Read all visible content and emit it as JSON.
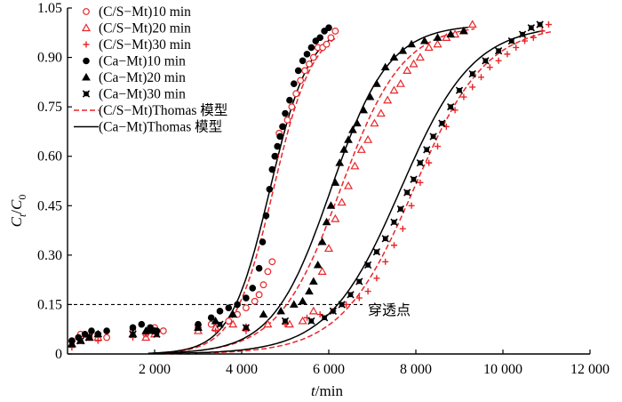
{
  "chart_data": {
    "type": "scatter",
    "title": "",
    "xlabel": {
      "var": "t",
      "unit": "/min"
    },
    "ylabel": {
      "main": "C",
      "sub_t": "t",
      "slash": "/",
      "main2": "C",
      "sub_0": "0"
    },
    "xlim": [
      0,
      12000
    ],
    "ylim": [
      0,
      1.05
    ],
    "x_ticks": [
      2000,
      4000,
      6000,
      8000,
      10000,
      12000
    ],
    "x_tick_labels": [
      "2 000",
      "4 000",
      "6 000",
      "8 000",
      "10 000",
      "12 000"
    ],
    "y_ticks": [
      0,
      0.15,
      0.3,
      0.45,
      0.6,
      0.75,
      0.9,
      1.05
    ],
    "y_tick_labels": [
      "0",
      "0.15",
      "0.30",
      "0.45",
      "0.60",
      "0.75",
      "0.90",
      "1.05"
    ],
    "grid": false,
    "legend_position": "top-left",
    "breakthrough": {
      "y": 0.15,
      "label": "穿透点"
    },
    "series": [
      {
        "name": "(C/S−Mt)10 min",
        "marker": "circle-open",
        "color": "#e8262a",
        "points": [
          [
            100,
            0.04
          ],
          [
            300,
            0.06
          ],
          [
            500,
            0.05
          ],
          [
            700,
            0.06
          ],
          [
            900,
            0.05
          ],
          [
            1500,
            0.07
          ],
          [
            1800,
            0.06
          ],
          [
            2000,
            0.08
          ],
          [
            2200,
            0.07
          ],
          [
            3000,
            0.08
          ],
          [
            3300,
            0.09
          ],
          [
            3700,
            0.1
          ],
          [
            3900,
            0.12
          ],
          [
            4100,
            0.14
          ],
          [
            4300,
            0.16
          ],
          [
            4400,
            0.18
          ],
          [
            4500,
            0.21
          ],
          [
            4600,
            0.25
          ],
          [
            4700,
            0.28
          ],
          [
            4780,
            0.6
          ],
          [
            4860,
            0.67
          ],
          [
            4940,
            0.69
          ],
          [
            5050,
            0.71
          ],
          [
            5150,
            0.75
          ],
          [
            5250,
            0.79
          ],
          [
            5350,
            0.83
          ],
          [
            5450,
            0.86
          ],
          [
            5550,
            0.88
          ],
          [
            5650,
            0.9
          ],
          [
            5750,
            0.93
          ],
          [
            5860,
            0.93
          ],
          [
            5950,
            0.94
          ],
          [
            6050,
            0.96
          ],
          [
            6150,
            0.98
          ]
        ]
      },
      {
        "name": "(C/S−Mt)20 min",
        "marker": "triangle-open",
        "color": "#e8262a",
        "points": [
          [
            100,
            0.03
          ],
          [
            300,
            0.04
          ],
          [
            500,
            0.05
          ],
          [
            700,
            0.05
          ],
          [
            1500,
            0.06
          ],
          [
            1800,
            0.05
          ],
          [
            2000,
            0.06
          ],
          [
            3000,
            0.07
          ],
          [
            3400,
            0.08
          ],
          [
            3800,
            0.09
          ],
          [
            4100,
            0.08
          ],
          [
            4600,
            0.09
          ],
          [
            5100,
            0.09
          ],
          [
            5400,
            0.1
          ],
          [
            5650,
            0.13
          ],
          [
            5850,
            0.25
          ],
          [
            6000,
            0.32
          ],
          [
            6150,
            0.41
          ],
          [
            6300,
            0.46
          ],
          [
            6450,
            0.51
          ],
          [
            6600,
            0.57
          ],
          [
            6750,
            0.62
          ],
          [
            6900,
            0.65
          ],
          [
            7050,
            0.7
          ],
          [
            7200,
            0.73
          ],
          [
            7350,
            0.77
          ],
          [
            7500,
            0.8
          ],
          [
            7650,
            0.82
          ],
          [
            7800,
            0.86
          ],
          [
            7950,
            0.88
          ],
          [
            8100,
            0.9
          ],
          [
            8300,
            0.93
          ],
          [
            8500,
            0.94
          ],
          [
            8700,
            0.96
          ],
          [
            8900,
            0.97
          ],
          [
            9100,
            0.98
          ],
          [
            9300,
            1.0
          ]
        ]
      },
      {
        "name": "(C/S−Mt)30 min",
        "marker": "plus",
        "color": "#e8262a",
        "points": [
          [
            100,
            0.02
          ],
          [
            300,
            0.04
          ],
          [
            500,
            0.05
          ],
          [
            700,
            0.04
          ],
          [
            1500,
            0.05
          ],
          [
            1800,
            0.06
          ],
          [
            2000,
            0.07
          ],
          [
            3000,
            0.08
          ],
          [
            3400,
            0.07
          ],
          [
            4100,
            0.07
          ],
          [
            5000,
            0.09
          ],
          [
            5500,
            0.11
          ],
          [
            5800,
            0.12
          ],
          [
            6100,
            0.13
          ],
          [
            6400,
            0.15
          ],
          [
            6700,
            0.17
          ],
          [
            6900,
            0.19
          ],
          [
            7100,
            0.23
          ],
          [
            7300,
            0.28
          ],
          [
            7500,
            0.33
          ],
          [
            7700,
            0.38
          ],
          [
            7900,
            0.45
          ],
          [
            8100,
            0.52
          ],
          [
            8300,
            0.58
          ],
          [
            8500,
            0.63
          ],
          [
            8700,
            0.69
          ],
          [
            8900,
            0.74
          ],
          [
            9100,
            0.78
          ],
          [
            9300,
            0.81
          ],
          [
            9500,
            0.84
          ],
          [
            9700,
            0.87
          ],
          [
            9900,
            0.89
          ],
          [
            10100,
            0.91
          ],
          [
            10300,
            0.93
          ],
          [
            10500,
            0.95
          ],
          [
            10700,
            0.96
          ],
          [
            10900,
            0.98
          ],
          [
            11050,
            1.0
          ]
        ]
      },
      {
        "name": "(Ca−Mt)10 min",
        "marker": "circle-filled",
        "color": "#000000",
        "points": [
          [
            100,
            0.04
          ],
          [
            250,
            0.05
          ],
          [
            400,
            0.06
          ],
          [
            550,
            0.07
          ],
          [
            700,
            0.06
          ],
          [
            900,
            0.07
          ],
          [
            1500,
            0.08
          ],
          [
            1700,
            0.09
          ],
          [
            1900,
            0.08
          ],
          [
            2050,
            0.07
          ],
          [
            3000,
            0.09
          ],
          [
            3300,
            0.11
          ],
          [
            3500,
            0.13
          ],
          [
            3700,
            0.14
          ],
          [
            3900,
            0.15
          ],
          [
            4100,
            0.17
          ],
          [
            4250,
            0.2
          ],
          [
            4400,
            0.26
          ],
          [
            4480,
            0.34
          ],
          [
            4560,
            0.42
          ],
          [
            4640,
            0.5
          ],
          [
            4700,
            0.56
          ],
          [
            4760,
            0.6
          ],
          [
            4820,
            0.63
          ],
          [
            4880,
            0.66
          ],
          [
            4940,
            0.69
          ],
          [
            5000,
            0.73
          ],
          [
            5100,
            0.77
          ],
          [
            5200,
            0.82
          ],
          [
            5300,
            0.86
          ],
          [
            5400,
            0.89
          ],
          [
            5500,
            0.91
          ],
          [
            5600,
            0.93
          ],
          [
            5700,
            0.95
          ],
          [
            5800,
            0.96
          ],
          [
            5900,
            0.98
          ],
          [
            6000,
            0.99
          ]
        ]
      },
      {
        "name": "(Ca−Mt)20 min",
        "marker": "triangle-filled",
        "color": "#000000",
        "points": [
          [
            100,
            0.03
          ],
          [
            300,
            0.04
          ],
          [
            500,
            0.05
          ],
          [
            700,
            0.06
          ],
          [
            1500,
            0.06
          ],
          [
            1800,
            0.07
          ],
          [
            2000,
            0.07
          ],
          [
            3000,
            0.08
          ],
          [
            3400,
            0.1
          ],
          [
            3800,
            0.12
          ],
          [
            4500,
            0.12
          ],
          [
            4900,
            0.13
          ],
          [
            5200,
            0.15
          ],
          [
            5400,
            0.16
          ],
          [
            5550,
            0.19
          ],
          [
            5650,
            0.22
          ],
          [
            5750,
            0.27
          ],
          [
            5850,
            0.34
          ],
          [
            5950,
            0.4
          ],
          [
            6050,
            0.45
          ],
          [
            6150,
            0.52
          ],
          [
            6250,
            0.58
          ],
          [
            6350,
            0.62
          ],
          [
            6450,
            0.65
          ],
          [
            6550,
            0.68
          ],
          [
            6650,
            0.7
          ],
          [
            6800,
            0.74
          ],
          [
            6950,
            0.78
          ],
          [
            7100,
            0.82
          ],
          [
            7300,
            0.87
          ],
          [
            7500,
            0.9
          ],
          [
            7700,
            0.92
          ],
          [
            7900,
            0.94
          ],
          [
            8200,
            0.95
          ],
          [
            8500,
            0.96
          ],
          [
            8800,
            0.97
          ],
          [
            9100,
            0.98
          ]
        ]
      },
      {
        "name": "(Ca−Mt)30 min",
        "marker": "x-square",
        "color": "#000000",
        "points": [
          [
            100,
            0.03
          ],
          [
            300,
            0.04
          ],
          [
            500,
            0.05
          ],
          [
            1500,
            0.06
          ],
          [
            1900,
            0.07
          ],
          [
            2050,
            0.06
          ],
          [
            3000,
            0.08
          ],
          [
            3500,
            0.09
          ],
          [
            4100,
            0.08
          ],
          [
            5000,
            0.1
          ],
          [
            5600,
            0.1
          ],
          [
            5900,
            0.11
          ],
          [
            6100,
            0.13
          ],
          [
            6300,
            0.15
          ],
          [
            6500,
            0.18
          ],
          [
            6700,
            0.22
          ],
          [
            6900,
            0.27
          ],
          [
            7100,
            0.31
          ],
          [
            7300,
            0.35
          ],
          [
            7500,
            0.4
          ],
          [
            7650,
            0.44
          ],
          [
            7800,
            0.49
          ],
          [
            7950,
            0.53
          ],
          [
            8100,
            0.58
          ],
          [
            8250,
            0.62
          ],
          [
            8400,
            0.66
          ],
          [
            8600,
            0.7
          ],
          [
            8800,
            0.75
          ],
          [
            9000,
            0.8
          ],
          [
            9300,
            0.85
          ],
          [
            9600,
            0.89
          ],
          [
            9900,
            0.92
          ],
          [
            10200,
            0.95
          ],
          [
            10450,
            0.97
          ],
          [
            10650,
            0.99
          ],
          [
            10850,
            1.0
          ]
        ]
      }
    ],
    "models": [
      {
        "name": "(C/S−Mt)Thomas 模型",
        "style": "dashed",
        "color": "#e8262a",
        "curves": [
          {
            "k": 0.0022,
            "t50": 4730,
            "x0": 1850,
            "x1": 6200
          },
          {
            "k": 0.0014,
            "t50": 6270,
            "x0": 1950,
            "x1": 9350
          },
          {
            "k": 0.0012,
            "t50": 7950,
            "x0": 2250,
            "x1": 11100
          }
        ]
      },
      {
        "name": "(Ca−Mt)Thomas 模型",
        "style": "solid",
        "color": "#000000",
        "curves": [
          {
            "k": 0.0022,
            "t50": 4650,
            "x0": 1850,
            "x1": 6050
          },
          {
            "k": 0.0015,
            "t50": 6050,
            "x0": 1950,
            "x1": 9200
          },
          {
            "k": 0.0012,
            "t50": 7650,
            "x0": 2250,
            "x1": 10950
          }
        ]
      }
    ]
  }
}
